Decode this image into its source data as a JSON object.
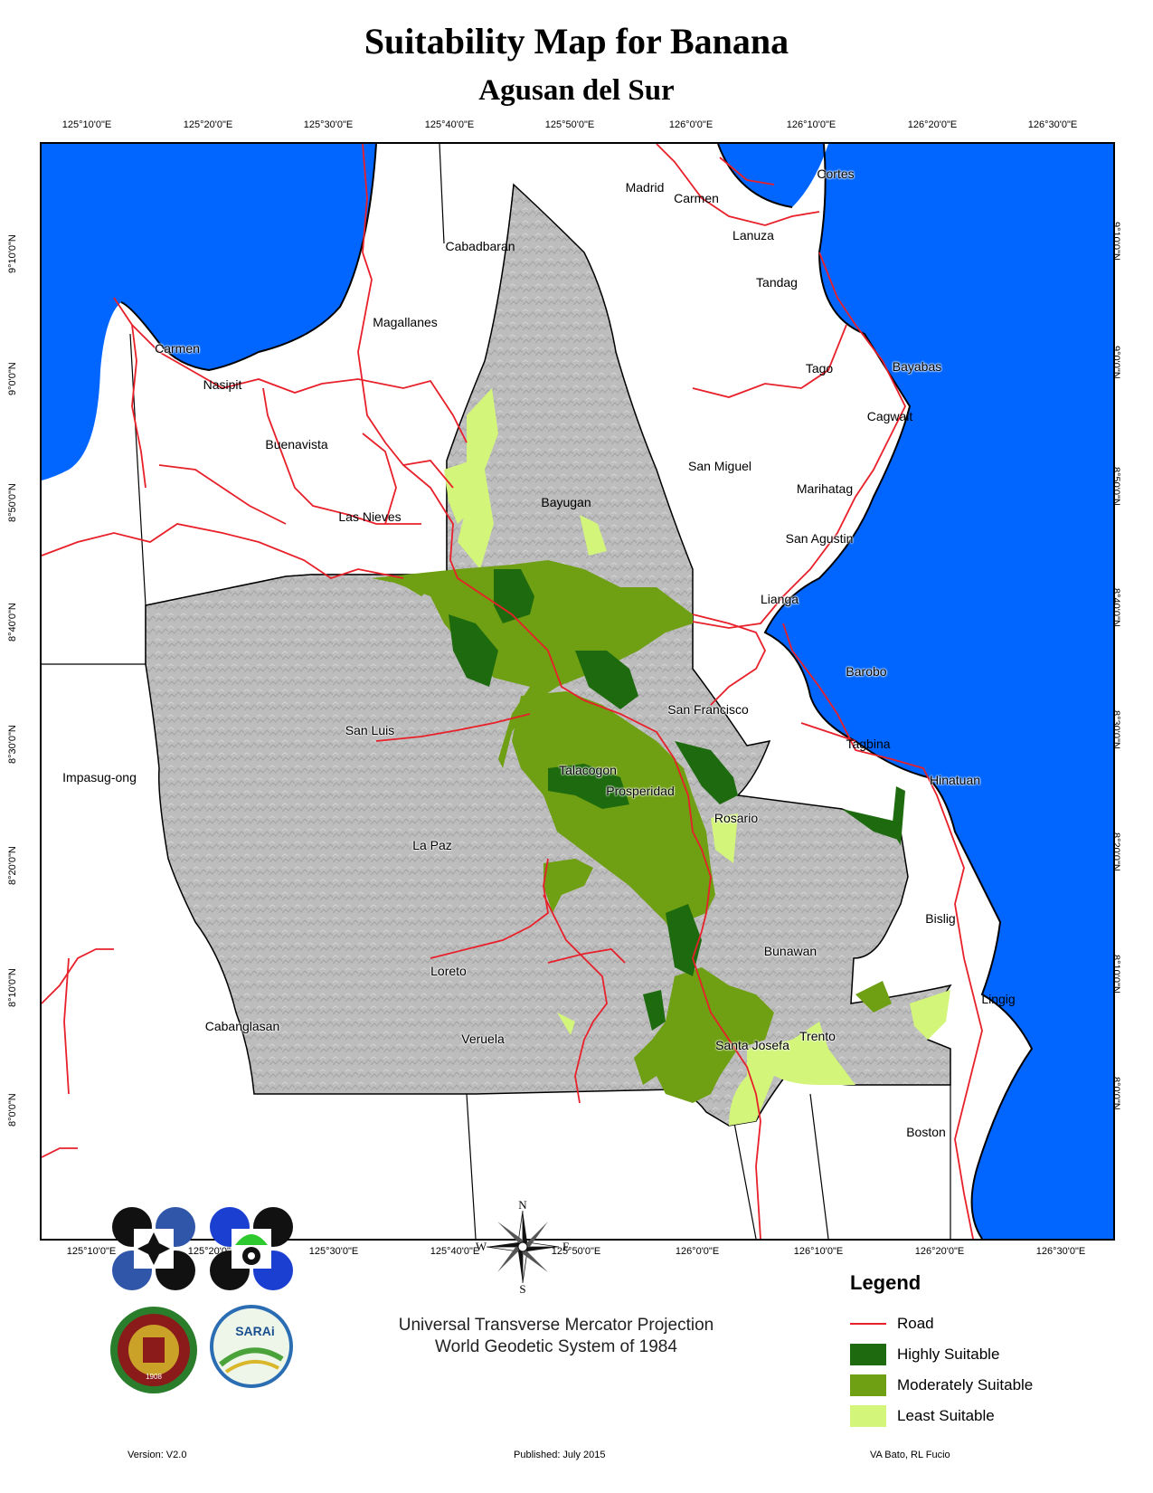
{
  "title": "Suitability Map for Banana",
  "subtitle": "Agusan del Sur",
  "longitude_ticks": [
    "125°10'0\"E",
    "125°20'0\"E",
    "125°30'0\"E",
    "125°40'0\"E",
    "125°50'0\"E",
    "126°0'0\"E",
    "126°10'0\"E",
    "126°20'0\"E",
    "126°30'0\"E"
  ],
  "latitude_ticks": [
    "9°10'0\"N",
    "9°0'0\"N",
    "8°50'0\"N",
    "8°40'0\"N",
    "8°30'0\"N",
    "8°20'0\"N",
    "8°10'0\"N",
    "8°0'0\"N"
  ],
  "places": {
    "cortes": "Cortes",
    "madrid": "Madrid",
    "carmen_n": "Carmen",
    "lanuza": "Lanuza",
    "cabadbaran": "Cabadbaran",
    "tandag": "Tandag",
    "magallanes": "Magallanes",
    "carmen_w": "Carmen",
    "nasipit": "Nasipit",
    "tago": "Tago",
    "bayabas": "Bayabas",
    "cagwait": "Cagwait",
    "buenavista": "Buenavista",
    "san_miguel": "San Miguel",
    "marihatag": "Marihatag",
    "bayugan": "Bayugan",
    "las_nieves": "Las Nieves",
    "san_agustin": "San Agustin",
    "lianga": "Lianga",
    "barobo": "Barobo",
    "san_francisco": "San Francisco",
    "san_luis": "San Luis",
    "tagbina": "Tagbina",
    "impasug_ong": "Impasug-ong",
    "talacogon": "Talacogon",
    "hinatuan": "Hinatuan",
    "prosperidad": "Prosperidad",
    "rosario": "Rosario",
    "la_paz": "La Paz",
    "bislig": "Bislig",
    "bunawan": "Bunawan",
    "loreto": "Loreto",
    "lingig": "Lingig",
    "cabanglasan": "Cabanglasan",
    "trento": "Trento",
    "veruela": "Veruela",
    "santa_josefa": "Santa Josefa",
    "boston": "Boston"
  },
  "compass": {
    "n": "N",
    "s": "S",
    "e": "E",
    "w": "W"
  },
  "legend": {
    "title": "Legend",
    "items": [
      {
        "label": "Road",
        "color": "#e8202a"
      },
      {
        "label": "Highly Suitable",
        "color": "#1e6b0f"
      },
      {
        "label": "Moderately Suitable",
        "color": "#6f9f12"
      },
      {
        "label": "Least Suitable",
        "color": "#d2f57a"
      }
    ]
  },
  "projection": {
    "line1": "Universal Transverse Mercator Projection",
    "line2": "World Geodetic System of 1984"
  },
  "footer": {
    "version": "Version: V2.0",
    "published": "Published: July 2015",
    "authors": "VA Bato, RL Fucio"
  },
  "logos": {
    "sarai_text": "SARAi",
    "up_year": "1908"
  },
  "colors": {
    "sea": "#0066ff",
    "province": "#bdbdbd",
    "land": "#ffffff",
    "road": "#e8202a"
  }
}
